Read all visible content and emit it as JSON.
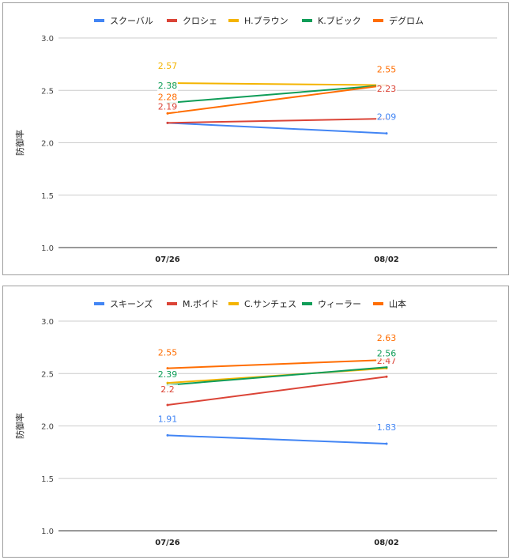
{
  "chart_data": [
    {
      "type": "line",
      "title": "",
      "xlabel": "",
      "ylabel": "防御率",
      "categories": [
        "07/26",
        "08/02"
      ],
      "ylim": [
        1.0,
        3.0
      ],
      "yticks": [
        "1.0",
        "1.5",
        "2.0",
        "2.5",
        "3.0"
      ],
      "grid": true,
      "legend": "top",
      "series": [
        {
          "name": "スクーバル",
          "color": "#4285f4",
          "values": [
            2.19,
            2.09
          ],
          "labels": [
            "",
            "2.09"
          ]
        },
        {
          "name": "クロシェ",
          "color": "#db4437",
          "values": [
            2.19,
            2.23
          ],
          "labels": [
            "2.19",
            "2.23"
          ]
        },
        {
          "name": "H.ブラウン",
          "color": "#f4b400",
          "values": [
            2.57,
            2.55
          ],
          "labels": [
            "2.57",
            ""
          ]
        },
        {
          "name": "K.ブビック",
          "color": "#0f9d58",
          "values": [
            2.38,
            2.55
          ],
          "labels": [
            "2.38",
            ""
          ]
        },
        {
          "name": "デグロム",
          "color": "#ff6d01",
          "values": [
            2.28,
            2.55
          ],
          "labels": [
            "2.28",
            "2.55"
          ]
        }
      ]
    },
    {
      "type": "line",
      "title": "",
      "xlabel": "",
      "ylabel": "防御率",
      "categories": [
        "07/26",
        "08/02"
      ],
      "ylim": [
        1.0,
        3.0
      ],
      "yticks": [
        "1.0",
        "1.5",
        "2.0",
        "2.5",
        "3.0"
      ],
      "grid": true,
      "legend": "top",
      "series": [
        {
          "name": "スキーンズ",
          "color": "#4285f4",
          "values": [
            1.91,
            1.83
          ],
          "labels": [
            "1.91",
            "1.83"
          ]
        },
        {
          "name": "M.ボイド",
          "color": "#db4437",
          "values": [
            2.2,
            2.47
          ],
          "labels": [
            "2.2",
            "2.47"
          ]
        },
        {
          "name": "C.サンチェス",
          "color": "#f4b400",
          "values": [
            2.41,
            2.55
          ],
          "labels": [
            "",
            ""
          ]
        },
        {
          "name": "ウィーラー",
          "color": "#0f9d58",
          "values": [
            2.39,
            2.56
          ],
          "labels": [
            "2.39",
            "2.56"
          ]
        },
        {
          "name": "山本",
          "color": "#ff6d01",
          "values": [
            2.55,
            2.63
          ],
          "labels": [
            "2.55",
            "2.63"
          ]
        }
      ]
    }
  ]
}
